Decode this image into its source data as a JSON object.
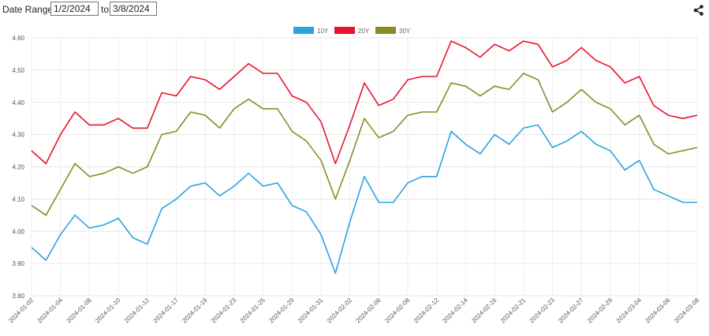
{
  "controls": {
    "date_range_label": "Date Range:",
    "start_date": "1/2/2024",
    "to_label": "to",
    "end_date": "3/8/2024",
    "share_icon": "share-icon"
  },
  "chart_data": {
    "type": "line",
    "x_tick_labels": [
      "2024-01-02",
      "2024-01-04",
      "2024-01-08",
      "2024-01-10",
      "2024-01-12",
      "2024-01-17",
      "2024-01-19",
      "2024-01-23",
      "2024-01-25",
      "2024-01-29",
      "2024-01-31",
      "2024-02-02",
      "2024-02-06",
      "2024-02-08",
      "2024-02-12",
      "2024-02-14",
      "2024-02-16",
      "2024-02-21",
      "2024-02-23",
      "2024-02-27",
      "2024-02-29",
      "2024-03-04",
      "2024-03-06",
      "2024-03-08"
    ],
    "x": [
      "2024-01-02",
      "2024-01-03",
      "2024-01-04",
      "2024-01-05",
      "2024-01-08",
      "2024-01-09",
      "2024-01-10",
      "2024-01-11",
      "2024-01-12",
      "2024-01-16",
      "2024-01-17",
      "2024-01-18",
      "2024-01-19",
      "2024-01-22",
      "2024-01-23",
      "2024-01-24",
      "2024-01-25",
      "2024-01-26",
      "2024-01-29",
      "2024-01-30",
      "2024-01-31",
      "2024-02-01",
      "2024-02-02",
      "2024-02-05",
      "2024-02-06",
      "2024-02-07",
      "2024-02-08",
      "2024-02-09",
      "2024-02-12",
      "2024-02-13",
      "2024-02-14",
      "2024-02-15",
      "2024-02-16",
      "2024-02-20",
      "2024-02-21",
      "2024-02-22",
      "2024-02-23",
      "2024-02-26",
      "2024-02-27",
      "2024-02-28",
      "2024-02-29",
      "2024-03-01",
      "2024-03-04",
      "2024-03-05",
      "2024-03-06",
      "2024-03-07",
      "2024-03-08"
    ],
    "series": [
      {
        "name": "10Y",
        "color": "#2aa4e0",
        "values": [
          3.95,
          3.91,
          3.99,
          4.05,
          4.01,
          4.02,
          4.04,
          3.98,
          3.96,
          4.07,
          4.1,
          4.14,
          4.15,
          4.11,
          4.14,
          4.18,
          4.14,
          4.15,
          4.08,
          4.06,
          3.99,
          3.87,
          4.03,
          4.17,
          4.09,
          4.09,
          4.15,
          4.17,
          4.17,
          4.31,
          4.27,
          4.24,
          4.3,
          4.27,
          4.32,
          4.33,
          4.26,
          4.28,
          4.31,
          4.27,
          4.25,
          4.19,
          4.22,
          4.13,
          4.11,
          4.09,
          4.09
        ]
      },
      {
        "name": "20Y",
        "color": "#e8132c",
        "values": [
          4.25,
          4.21,
          4.3,
          4.37,
          4.33,
          4.33,
          4.35,
          4.32,
          4.32,
          4.43,
          4.42,
          4.48,
          4.47,
          4.44,
          4.48,
          4.52,
          4.49,
          4.49,
          4.42,
          4.4,
          4.34,
          4.21,
          4.33,
          4.46,
          4.39,
          4.41,
          4.47,
          4.48,
          4.48,
          4.59,
          4.57,
          4.54,
          4.58,
          4.56,
          4.59,
          4.58,
          4.51,
          4.53,
          4.57,
          4.53,
          4.51,
          4.46,
          4.48,
          4.39,
          4.36,
          4.35,
          4.36
        ]
      },
      {
        "name": "30Y",
        "color": "#8b8b26",
        "values": [
          4.08,
          4.05,
          4.13,
          4.21,
          4.17,
          4.18,
          4.2,
          4.18,
          4.2,
          4.3,
          4.31,
          4.37,
          4.36,
          4.32,
          4.38,
          4.41,
          4.38,
          4.38,
          4.31,
          4.28,
          4.22,
          4.1,
          4.22,
          4.35,
          4.29,
          4.31,
          4.36,
          4.37,
          4.37,
          4.46,
          4.45,
          4.42,
          4.45,
          4.44,
          4.49,
          4.47,
          4.37,
          4.4,
          4.44,
          4.4,
          4.38,
          4.33,
          4.36,
          4.27,
          4.24,
          4.25,
          4.26
        ]
      }
    ],
    "y_ticks": [
      "3.80",
      "3.90",
      "4.00",
      "4.10",
      "4.20",
      "4.30",
      "4.40",
      "4.50",
      "4.60"
    ],
    "ylim": [
      3.8,
      4.6
    ],
    "grid": true,
    "legend_position": "top-center"
  }
}
